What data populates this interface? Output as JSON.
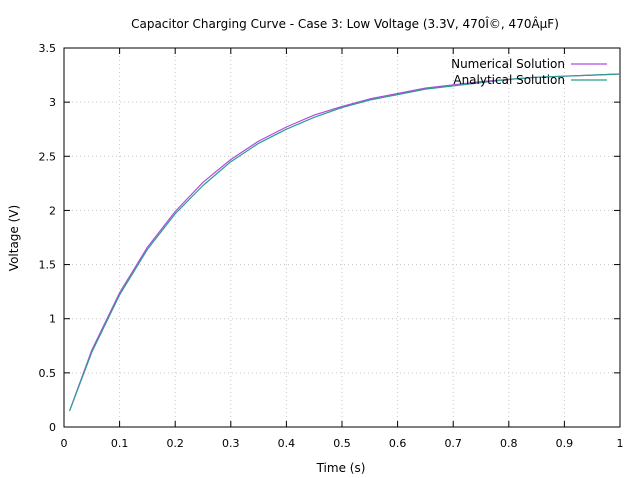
{
  "chart_data": {
    "type": "line",
    "title": "Capacitor Charging Curve - Case 3: Low Voltage (3.3V, 470Î©, 470ÂµF)",
    "xlabel": "Time (s)",
    "ylabel": "Voltage (V)",
    "xlim": [
      0,
      1
    ],
    "ylim": [
      0,
      3.5
    ],
    "xticks": [
      0,
      0.1,
      0.2,
      0.3,
      0.4,
      0.5,
      0.6,
      0.7,
      0.8,
      0.9,
      1
    ],
    "xtick_labels": [
      "0",
      "0.1",
      "0.2",
      "0.3",
      "0.4",
      "0.5",
      "0.6",
      "0.7",
      "0.8",
      "0.9",
      "1"
    ],
    "yticks": [
      0,
      0.5,
      1,
      1.5,
      2,
      2.5,
      3,
      3.5
    ],
    "ytick_labels": [
      "0",
      "0.5",
      "1",
      "1.5",
      "2",
      "2.5",
      "3",
      "3.5"
    ],
    "grid": true,
    "legend_position": "top-right",
    "series": [
      {
        "name": "Numerical Solution",
        "color": "#b04be0",
        "x": [
          0.01,
          0.05,
          0.1,
          0.15,
          0.2,
          0.25,
          0.3,
          0.35,
          0.4,
          0.45,
          0.5,
          0.55,
          0.6,
          0.65,
          0.7,
          0.75,
          0.8,
          0.85,
          0.9,
          0.95,
          1.0
        ],
        "y": [
          0.15,
          0.71,
          1.24,
          1.66,
          1.99,
          2.26,
          2.47,
          2.64,
          2.77,
          2.88,
          2.96,
          3.03,
          3.08,
          3.13,
          3.16,
          3.19,
          3.21,
          3.23,
          3.24,
          3.25,
          3.26
        ]
      },
      {
        "name": "Analytical Solution",
        "color": "#2a9d8f",
        "x": [
          0.01,
          0.05,
          0.1,
          0.15,
          0.2,
          0.25,
          0.3,
          0.35,
          0.4,
          0.45,
          0.5,
          0.55,
          0.6,
          0.65,
          0.7,
          0.75,
          0.8,
          0.85,
          0.9,
          0.95,
          1.0
        ],
        "y": [
          0.15,
          0.69,
          1.22,
          1.64,
          1.97,
          2.23,
          2.45,
          2.62,
          2.75,
          2.86,
          2.95,
          3.02,
          3.07,
          3.12,
          3.15,
          3.18,
          3.21,
          3.23,
          3.24,
          3.25,
          3.26
        ]
      }
    ]
  }
}
